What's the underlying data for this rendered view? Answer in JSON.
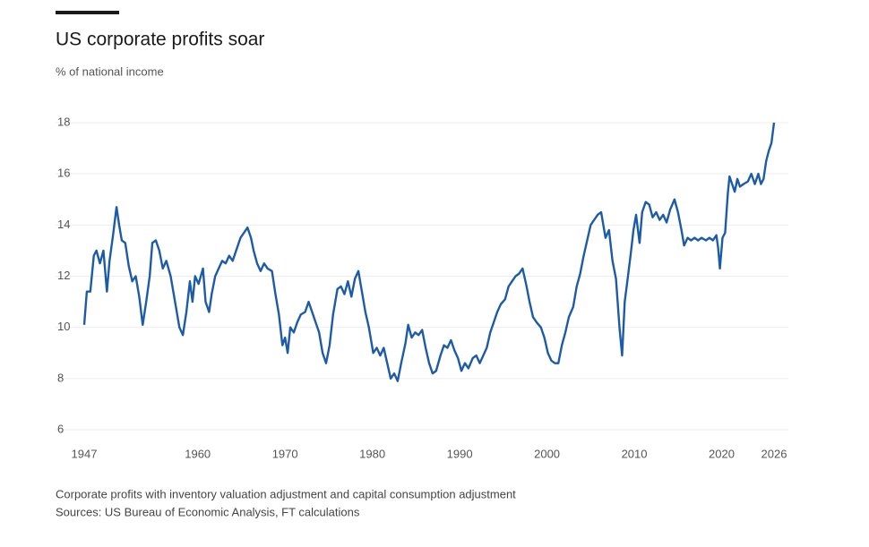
{
  "chart_data": {
    "type": "line",
    "title": "US corporate profits soar",
    "subtitle": "% of national income",
    "note": "Corporate profits with inventory valuation adjustment and capital consumption adjustment",
    "source": "Sources: US Bureau of Economic Analysis, FT calculations",
    "color": "#1d5ba8",
    "grid": true,
    "xlim": [
      1947,
      2026
    ],
    "ylim": [
      6,
      18
    ],
    "xticks": [
      1947,
      1960,
      1970,
      1980,
      1990,
      2000,
      2010,
      2020,
      2026
    ],
    "yticks": [
      6,
      8,
      10,
      12,
      14,
      16,
      18
    ],
    "x": [
      1947.0,
      1947.3,
      1947.7,
      1948.1,
      1948.4,
      1948.8,
      1949.2,
      1949.6,
      1949.9,
      1950.3,
      1950.7,
      1951.0,
      1951.3,
      1951.7,
      1952.1,
      1952.5,
      1952.9,
      1953.3,
      1953.7,
      1954.1,
      1954.5,
      1954.8,
      1955.2,
      1955.6,
      1956.0,
      1956.4,
      1956.9,
      1957.4,
      1957.9,
      1958.3,
      1958.7,
      1959.1,
      1959.4,
      1959.7,
      1960.1,
      1960.6,
      1960.9,
      1961.3,
      1961.6,
      1962.0,
      1962.4,
      1962.8,
      1963.2,
      1963.6,
      1964.0,
      1964.4,
      1964.9,
      1965.3,
      1965.7,
      1966.1,
      1966.4,
      1966.8,
      1967.2,
      1967.6,
      1968.0,
      1968.5,
      1968.9,
      1969.3,
      1969.7,
      1970.0,
      1970.3,
      1970.6,
      1971.0,
      1971.4,
      1971.8,
      1972.3,
      1972.7,
      1973.1,
      1973.5,
      1973.9,
      1974.3,
      1974.7,
      1975.1,
      1975.5,
      1976.0,
      1976.4,
      1976.8,
      1977.2,
      1977.6,
      1978.0,
      1978.4,
      1978.8,
      1979.2,
      1979.6,
      1980.1,
      1980.5,
      1980.9,
      1981.3,
      1981.7,
      1982.1,
      1982.5,
      1982.9,
      1983.3,
      1983.8,
      1984.1,
      1984.5,
      1984.9,
      1985.3,
      1985.7,
      1986.1,
      1986.5,
      1986.9,
      1987.3,
      1987.8,
      1988.2,
      1988.6,
      1989.0,
      1989.4,
      1989.8,
      1990.2,
      1990.6,
      1991.0,
      1991.5,
      1991.9,
      1992.3,
      1992.7,
      1993.1,
      1993.5,
      1993.9,
      1994.3,
      1994.7,
      1995.2,
      1995.6,
      1996.0,
      1996.4,
      1996.8,
      1997.2,
      1997.6,
      1998.0,
      1998.4,
      1998.8,
      1999.3,
      1999.7,
      2000.1,
      2000.5,
      2000.9,
      2001.3,
      2001.7,
      2002.1,
      2002.5,
      2003.0,
      2003.4,
      2003.8,
      2004.2,
      2004.6,
      2005.0,
      2005.4,
      2005.8,
      2006.2,
      2006.7,
      2007.1,
      2007.5,
      2007.9,
      2008.3,
      2008.6,
      2008.9,
      2009.2,
      2009.6,
      2009.9,
      2010.2,
      2010.6,
      2010.9,
      2011.3,
      2011.7,
      2012.1,
      2012.5,
      2012.9,
      2013.3,
      2013.7,
      2014.1,
      2014.6,
      2015.0,
      2015.4,
      2015.7,
      2016.1,
      2016.5,
      2016.9,
      2017.3,
      2017.7,
      2018.2,
      2018.6,
      2019.0,
      2019.4,
      2019.6,
      2019.8,
      2020.1,
      2020.4,
      2020.7,
      2020.9,
      2021.2,
      2021.5,
      2021.8,
      2022.1,
      2022.5,
      2023.0,
      2023.4,
      2023.8,
      2024.2,
      2024.5,
      2024.8,
      2025.1,
      2025.4,
      2025.7,
      2026.0
    ],
    "values": [
      10.1,
      11.4,
      11.4,
      12.8,
      13.0,
      12.5,
      13.0,
      11.4,
      12.6,
      13.6,
      14.7,
      14.0,
      13.4,
      13.3,
      12.4,
      11.8,
      12.0,
      11.2,
      10.1,
      11.0,
      12.0,
      13.3,
      13.4,
      13.0,
      12.3,
      12.6,
      12.0,
      11.0,
      10.0,
      9.7,
      10.6,
      11.8,
      11.0,
      12.0,
      11.7,
      12.3,
      11.0,
      10.6,
      11.3,
      12.0,
      12.3,
      12.6,
      12.5,
      12.8,
      12.6,
      13.0,
      13.5,
      13.7,
      13.9,
      13.5,
      13.0,
      12.5,
      12.2,
      12.5,
      12.3,
      12.2,
      11.3,
      10.5,
      9.3,
      9.6,
      9.0,
      10.0,
      9.8,
      10.2,
      10.5,
      10.6,
      11.0,
      10.6,
      10.2,
      9.8,
      9.0,
      8.6,
      9.3,
      10.5,
      11.5,
      11.6,
      11.3,
      11.8,
      11.2,
      11.9,
      12.2,
      11.4,
      10.6,
      10.0,
      9.0,
      9.2,
      8.9,
      9.2,
      8.6,
      8.0,
      8.2,
      7.9,
      8.6,
      9.4,
      10.1,
      9.6,
      9.8,
      9.7,
      9.9,
      9.2,
      8.6,
      8.2,
      8.3,
      8.9,
      9.3,
      9.2,
      9.5,
      9.1,
      8.8,
      8.3,
      8.6,
      8.4,
      8.8,
      8.9,
      8.6,
      8.9,
      9.2,
      9.8,
      10.2,
      10.6,
      10.9,
      11.1,
      11.6,
      11.8,
      12.0,
      12.1,
      12.3,
      11.7,
      11.0,
      10.4,
      10.2,
      10.0,
      9.6,
      9.0,
      8.7,
      8.6,
      8.6,
      9.3,
      9.8,
      10.4,
      10.8,
      11.6,
      12.1,
      12.8,
      13.4,
      14.0,
      14.2,
      14.4,
      14.5,
      13.5,
      13.8,
      12.6,
      11.9,
      10.0,
      8.9,
      11.0,
      11.8,
      12.9,
      13.8,
      14.4,
      13.3,
      14.5,
      14.9,
      14.8,
      14.3,
      14.5,
      14.2,
      14.4,
      14.1,
      14.6,
      15.0,
      14.5,
      13.8,
      13.2,
      13.5,
      13.4,
      13.5,
      13.4,
      13.5,
      13.4,
      13.5,
      13.4,
      13.6,
      13.1,
      12.3,
      13.5,
      13.7,
      15.2,
      15.9,
      15.6,
      15.3,
      15.8,
      15.5,
      15.6,
      15.7,
      16.0,
      15.6,
      16.0,
      15.6,
      15.8,
      16.5,
      16.9,
      17.2,
      18.0
    ]
  }
}
